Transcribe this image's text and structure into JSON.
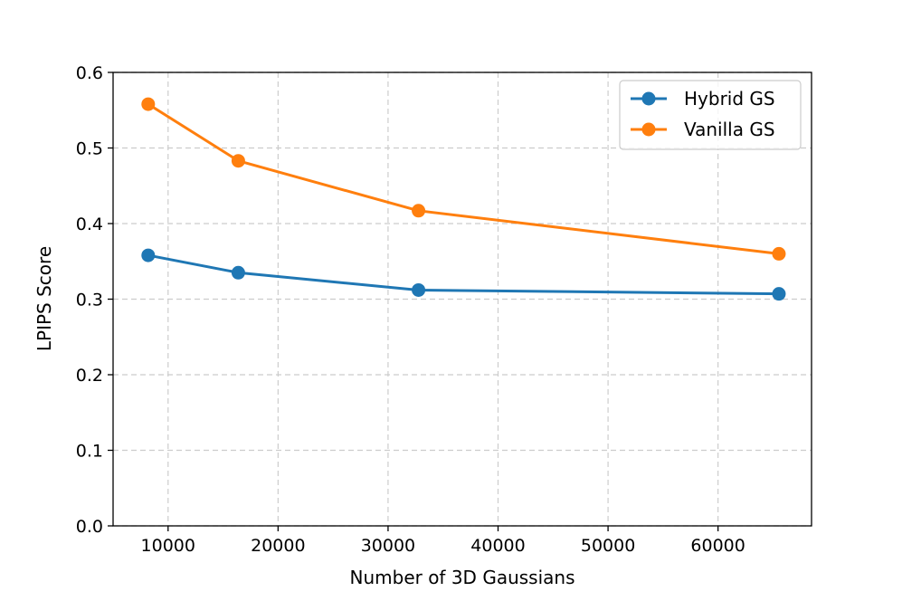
{
  "chart_data": {
    "type": "line",
    "xlabel": "Number of 3D Gaussians",
    "ylabel": "LPIPS Score",
    "xlim": [
      5000,
      68500
    ],
    "ylim": [
      0.0,
      0.6
    ],
    "xticks": [
      10000,
      20000,
      30000,
      40000,
      50000,
      60000
    ],
    "xtick_labels": [
      "10000",
      "20000",
      "30000",
      "40000",
      "50000",
      "60000"
    ],
    "yticks": [
      0.0,
      0.1,
      0.2,
      0.3,
      0.4,
      0.5,
      0.6
    ],
    "ytick_labels": [
      "0.0",
      "0.1",
      "0.2",
      "0.3",
      "0.4",
      "0.5",
      "0.6"
    ],
    "grid": true,
    "legend_position": "top-right",
    "series": [
      {
        "name": "Hybrid GS",
        "color": "#1f77b4",
        "marker": "circle",
        "x": [
          8192,
          16384,
          32768,
          65536
        ],
        "y": [
          0.358,
          0.335,
          0.312,
          0.307
        ]
      },
      {
        "name": "Vanilla GS",
        "color": "#ff7f0e",
        "marker": "circle",
        "x": [
          8192,
          16384,
          32768,
          65536
        ],
        "y": [
          0.558,
          0.483,
          0.417,
          0.36
        ]
      }
    ]
  }
}
